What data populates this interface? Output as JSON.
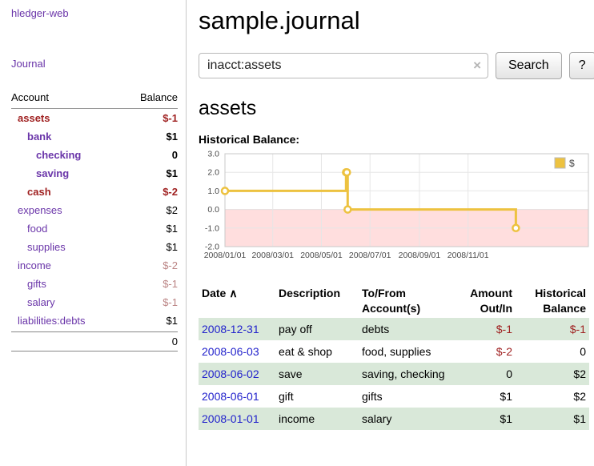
{
  "app_title": "hledger-web",
  "nav": {
    "journal": "Journal"
  },
  "sidebar_table": {
    "header": {
      "account": "Account",
      "balance": "Balance"
    },
    "rows": [
      {
        "name": "assets",
        "balance": "$-1"
      },
      {
        "name": "bank",
        "balance": "$1"
      },
      {
        "name": "checking",
        "balance": "0"
      },
      {
        "name": "saving",
        "balance": "$1"
      },
      {
        "name": "cash",
        "balance": "$-2"
      },
      {
        "name": "expenses",
        "balance": "$2"
      },
      {
        "name": "food",
        "balance": "$1"
      },
      {
        "name": "supplies",
        "balance": "$1"
      },
      {
        "name": "income",
        "balance": "$-2"
      },
      {
        "name": "gifts",
        "balance": "$-1"
      },
      {
        "name": "salary",
        "balance": "$-1"
      },
      {
        "name": "liabilities:debts",
        "balance": "$1"
      }
    ],
    "total": "0"
  },
  "main": {
    "title": "sample.journal",
    "search": {
      "value": "inacct:assets",
      "clear_icon": "×",
      "search_button": "Search",
      "help_button": "?"
    },
    "section_title": "assets",
    "chart_label": "Historical Balance:",
    "table": {
      "headers": {
        "date": "Date",
        "sort_icon": "∧",
        "description": "Description",
        "accounts": "To/From Account(s)",
        "amount": "Amount Out/In",
        "balance": "Historical Balance"
      },
      "rows": [
        {
          "date": "2008-12-31",
          "description": "pay off",
          "accounts": "debts",
          "amount": "$-1",
          "balance": "$-1"
        },
        {
          "date": "2008-06-03",
          "description": "eat & shop",
          "accounts": "food, supplies",
          "amount": "$-2",
          "balance": "0"
        },
        {
          "date": "2008-06-02",
          "description": "save",
          "accounts": "saving, checking",
          "amount": "0",
          "balance": "$2"
        },
        {
          "date": "2008-06-01",
          "description": "gift",
          "accounts": "gifts",
          "amount": "$1",
          "balance": "$2"
        },
        {
          "date": "2008-01-01",
          "description": "income",
          "accounts": "salary",
          "amount": "$1",
          "balance": "$1"
        }
      ]
    }
  },
  "chart_data": {
    "type": "line",
    "step": true,
    "title": "Historical Balance",
    "legend_position": "top-right",
    "xlim": [
      "2008-01-01",
      "2009-04-01"
    ],
    "ylim": [
      -2,
      3
    ],
    "y_ticks": [
      3,
      2,
      1,
      0,
      -1,
      -2
    ],
    "x_ticks": [
      "2008/01/01",
      "2008/03/01",
      "2008/05/01",
      "2008/07/01",
      "2008/09/01",
      "2008/11/01"
    ],
    "series": [
      {
        "name": "$",
        "color": "#edc240",
        "points": [
          [
            "2008-01-01",
            1
          ],
          [
            "2008-06-01",
            2
          ],
          [
            "2008-06-02",
            2
          ],
          [
            "2008-06-03",
            0
          ],
          [
            "2008-12-31",
            -1
          ]
        ]
      }
    ],
    "negative_region_fill": "#ffdede",
    "zero_line_color": "#f4b8b8",
    "grid": true
  },
  "colors": {
    "link_purple": "#6a35a9",
    "negative_strong": "#a02222",
    "negative_soft": "#bb8484",
    "date_link_blue": "#2222cc",
    "row_green": "#d9e8d9",
    "chart_line": "#edc240",
    "chart_negative_region": "#ffdede"
  }
}
